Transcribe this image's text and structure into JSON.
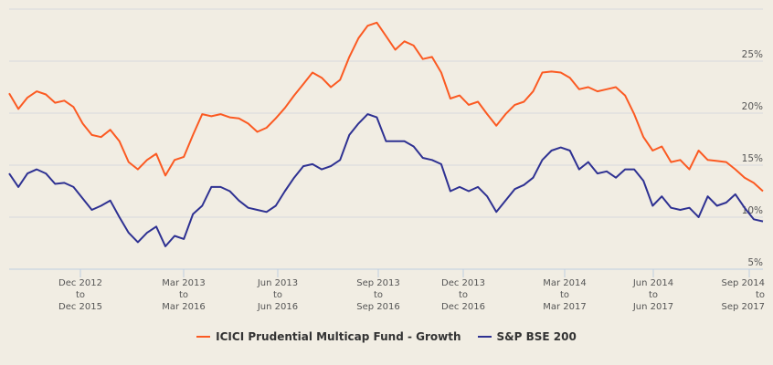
{
  "chart_data": {
    "type": "line",
    "title": "",
    "xlabel": "",
    "ylabel": "",
    "ylim": [
      5,
      30
    ],
    "y_ticks": [
      "5%",
      "10%",
      "15%",
      "20%",
      "25%"
    ],
    "y_unit": "%",
    "grid": true,
    "legend_placement": "bottom",
    "x_ticks": [
      {
        "line1": "Dec 2012",
        "line2": "to",
        "line3": "Dec 2015"
      },
      {
        "line1": "Mar 2013",
        "line2": "to",
        "line3": "Mar 2016"
      },
      {
        "line1": "Jun 2013",
        "line2": "to",
        "line3": "Jun 2016"
      },
      {
        "line1": "Sep 2013",
        "line2": "to",
        "line3": "Sep 2016"
      },
      {
        "line1": "Dec 2013",
        "line2": "to",
        "line3": "Dec 2016"
      },
      {
        "line1": "Mar 2014",
        "line2": "to",
        "line3": "Mar 2017"
      },
      {
        "line1": "Jun 2014",
        "line2": "to",
        "line3": "Jun 2017"
      },
      {
        "line1": "Sep 2014",
        "line2": "to",
        "line3": "Sep 2017"
      }
    ],
    "series": [
      {
        "name": "ICICI Prudential Multicap Fund - Growth",
        "color": "#fb5a22",
        "values": [
          21.9,
          20.4,
          21.5,
          22.1,
          21.8,
          21.0,
          21.2,
          20.6,
          19.0,
          17.9,
          17.7,
          18.4,
          17.3,
          15.3,
          14.6,
          15.5,
          16.1,
          14.0,
          15.5,
          15.8,
          17.9,
          19.9,
          19.7,
          19.9,
          19.6,
          19.5,
          19.0,
          18.2,
          18.6,
          19.5,
          20.5,
          21.7,
          22.8,
          23.9,
          23.4,
          22.5,
          23.2,
          25.4,
          27.2,
          28.4,
          28.7,
          27.4,
          26.1,
          26.9,
          26.5,
          25.2,
          25.4,
          23.9,
          21.4,
          21.7,
          20.8,
          21.1,
          19.9,
          18.8,
          19.9,
          20.8,
          21.1,
          22.1,
          23.9,
          24.0,
          23.9,
          23.4,
          22.3,
          22.5,
          22.1,
          22.3,
          22.5,
          21.7,
          19.9,
          17.7,
          16.4,
          16.8,
          15.3,
          15.5,
          14.6,
          16.4,
          15.5,
          15.4,
          15.3,
          14.6,
          13.8,
          13.3,
          12.5
        ]
      },
      {
        "name": "S&P BSE 200",
        "color": "#2e3192",
        "values": [
          14.2,
          12.9,
          14.2,
          14.6,
          14.2,
          13.2,
          13.3,
          12.9,
          11.8,
          10.7,
          11.1,
          11.6,
          10.0,
          8.5,
          7.6,
          8.5,
          9.1,
          7.2,
          8.2,
          7.9,
          10.3,
          11.1,
          12.9,
          12.9,
          12.5,
          11.6,
          10.9,
          10.7,
          10.5,
          11.1,
          12.5,
          13.8,
          14.9,
          15.1,
          14.6,
          14.9,
          15.5,
          17.9,
          19.0,
          19.9,
          19.6,
          17.3,
          17.3,
          17.3,
          16.8,
          15.7,
          15.5,
          15.1,
          12.5,
          12.9,
          12.5,
          12.9,
          12.0,
          10.5,
          11.6,
          12.7,
          13.1,
          13.8,
          15.5,
          16.4,
          16.7,
          16.4,
          14.6,
          15.3,
          14.2,
          14.4,
          13.8,
          14.6,
          14.6,
          13.5,
          11.1,
          12.0,
          10.9,
          10.7,
          10.9,
          10.0,
          12.0,
          11.1,
          11.4,
          12.2,
          10.9,
          9.8,
          9.6
        ]
      }
    ]
  }
}
